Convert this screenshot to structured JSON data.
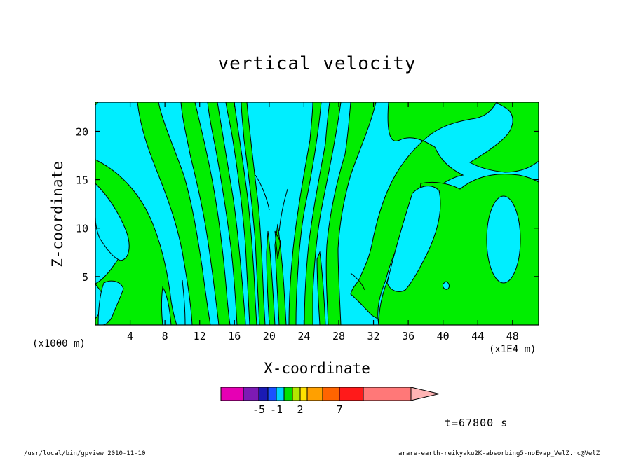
{
  "chart_data": {
    "type": "heatmap",
    "title": "vertical velocity",
    "xlabel": "X-coordinate",
    "ylabel": "Z-coordinate",
    "x_unit_left": "(x1000 m)",
    "x_unit_right": "(x1E4 m)",
    "xlim": [
      0,
      51
    ],
    "ylim": [
      0,
      23
    ],
    "x_ticks": [
      4,
      8,
      12,
      16,
      20,
      24,
      28,
      32,
      36,
      40,
      44,
      48
    ],
    "y_ticks": [
      5,
      10,
      15,
      20
    ],
    "colors": {
      "cyan": "#00eeff",
      "green": "#00ee00",
      "background": "#ffffff"
    },
    "colorbar": {
      "colors": [
        "#e600b4",
        "#7d1ab4",
        "#1a1ab4",
        "#1a50ff",
        "#00d2ff",
        "#00e100",
        "#b4e600",
        "#ffe100",
        "#ffa000",
        "#ff6400",
        "#ff1a1a",
        "#ff7878",
        "#ffb4b4"
      ],
      "labels": [
        {
          "text": "-5",
          "index": 1
        },
        {
          "text": "-1",
          "index": 3
        },
        {
          "text": "2",
          "index": 6
        },
        {
          "text": "7",
          "index": 9
        }
      ]
    },
    "time_label": "t=67800 s"
  },
  "footer": {
    "left": "/usr/local/bin/gpview  2010-11-10",
    "right": "arare-earth-reikyaku2K-absorbing5-noEvap_VelZ.nc@VelZ"
  }
}
